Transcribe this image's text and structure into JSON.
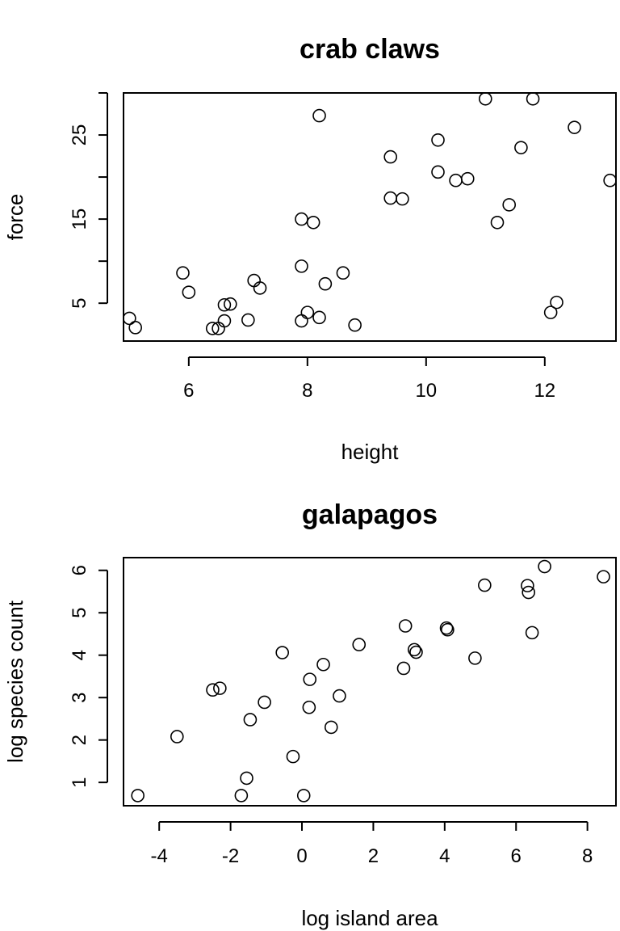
{
  "chart_data": [
    {
      "type": "scatter",
      "title": "crab claws",
      "xlabel": "height",
      "ylabel": "force",
      "xlim": [
        4.9,
        13.2
      ],
      "ylim": [
        0.5,
        30
      ],
      "xticks": [
        6,
        8,
        10,
        12
      ],
      "yticks": [
        5,
        10,
        15,
        20,
        25,
        30
      ],
      "ytick_labels": [
        "5",
        "",
        "15",
        "",
        "25",
        ""
      ],
      "grid": false,
      "x": [
        5.0,
        5.1,
        5.9,
        6.0,
        6.4,
        6.5,
        6.6,
        6.6,
        6.7,
        7.0,
        7.1,
        7.2,
        7.9,
        7.9,
        7.9,
        8.0,
        8.1,
        8.2,
        8.2,
        8.3,
        8.6,
        8.8,
        9.4,
        9.4,
        9.6,
        10.2,
        10.2,
        10.5,
        10.7,
        11.0,
        11.2,
        11.4,
        11.6,
        11.8,
        12.1,
        12.2,
        12.5,
        13.1
      ],
      "y": [
        3.2,
        2.1,
        8.6,
        6.3,
        2.0,
        2.0,
        4.8,
        2.9,
        4.9,
        3.0,
        7.7,
        6.8,
        15.0,
        9.4,
        2.9,
        3.9,
        14.6,
        27.3,
        3.3,
        7.3,
        8.6,
        2.4,
        22.4,
        17.5,
        17.4,
        24.4,
        20.6,
        19.6,
        19.8,
        29.3,
        14.6,
        16.7,
        23.5,
        29.3,
        3.9,
        5.1,
        25.9,
        19.6
      ]
    },
    {
      "type": "scatter",
      "title": "galapagos",
      "xlabel": "log island area",
      "ylabel": "log species count",
      "xlim": [
        -5.0,
        8.8
      ],
      "ylim": [
        0.45,
        6.3
      ],
      "xticks": [
        -4,
        -2,
        0,
        2,
        4,
        6,
        8
      ],
      "yticks": [
        1,
        2,
        3,
        4,
        5,
        6
      ],
      "grid": false,
      "x": [
        -4.6,
        -3.5,
        -2.5,
        -2.3,
        -1.7,
        -1.55,
        -1.45,
        -1.05,
        -0.55,
        -0.25,
        0.05,
        0.2,
        0.22,
        0.6,
        0.82,
        1.05,
        1.6,
        2.85,
        2.9,
        3.15,
        3.2,
        4.05,
        4.08,
        4.85,
        5.12,
        6.32,
        6.35,
        6.45,
        6.8,
        8.45
      ],
      "y": [
        0.69,
        2.08,
        3.18,
        3.22,
        0.69,
        1.1,
        2.48,
        2.89,
        4.06,
        1.61,
        0.69,
        2.77,
        3.43,
        3.78,
        2.3,
        3.04,
        4.25,
        3.69,
        4.69,
        4.13,
        4.07,
        4.64,
        4.6,
        3.93,
        5.65,
        5.64,
        5.48,
        4.53,
        6.09,
        5.85
      ]
    }
  ]
}
